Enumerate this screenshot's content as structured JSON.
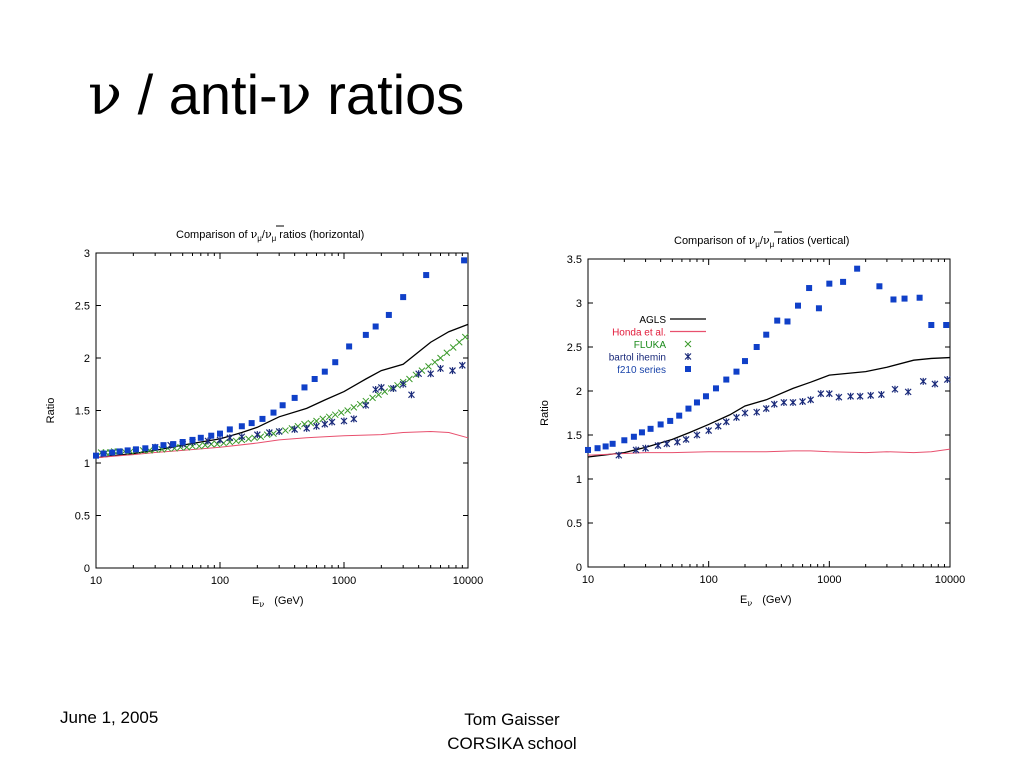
{
  "slide": {
    "title_nu1": "ν",
    "title_middle": " / anti-",
    "title_nu2": "ν",
    "title_end": " ratios",
    "footer_date": "June 1, 2005",
    "footer_author_line1": "Tom Gaisser",
    "footer_author_line2": "CORSIKA school"
  },
  "chart_data": [
    {
      "type": "line",
      "title_prefix": "Comparison of ",
      "title_nu_mu": "ν",
      "title_mu": "μ",
      "title_slash": "/",
      "title_suffix": " ratios (horizontal)",
      "ylabel": "Ratio",
      "xlabel_main": "E",
      "xlabel_sub": "ν",
      "xlabel_unit": "(GeV)",
      "xscale": "log",
      "xlim": [
        10,
        10000
      ],
      "ylim": [
        0,
        3
      ],
      "x_ticks": [
        10,
        100,
        1000,
        10000
      ],
      "x_tick_labels": [
        "10",
        "100",
        "1000",
        "10000"
      ],
      "y_ticks": [
        0,
        0.5,
        1,
        1.5,
        2,
        2.5,
        3
      ],
      "y_tick_labels": [
        "0",
        "0.5",
        "1",
        "1.5",
        "2",
        "2.5",
        "3"
      ],
      "series": [
        {
          "style": "line",
          "color": "#000000",
          "x": [
            10,
            20,
            30,
            50,
            70,
            100,
            150,
            200,
            300,
            500,
            700,
            1000,
            1500,
            2000,
            3000,
            5000,
            7000,
            10000
          ],
          "y": [
            1.05,
            1.09,
            1.12,
            1.17,
            1.2,
            1.23,
            1.29,
            1.34,
            1.44,
            1.52,
            1.6,
            1.68,
            1.8,
            1.88,
            1.94,
            2.15,
            2.25,
            2.32
          ]
        },
        {
          "style": "line",
          "color": "#e8506e",
          "x": [
            10,
            20,
            30,
            50,
            100,
            200,
            300,
            500,
            700,
            1000,
            2000,
            3000,
            5000,
            7000,
            10000
          ],
          "y": [
            1.05,
            1.08,
            1.1,
            1.12,
            1.15,
            1.19,
            1.22,
            1.24,
            1.25,
            1.26,
            1.27,
            1.29,
            1.3,
            1.29,
            1.24
          ]
        },
        {
          "style": "x",
          "color": "#3a9a2a",
          "x": [
            11,
            12,
            13,
            14,
            15,
            17,
            19,
            21,
            24,
            27,
            30,
            34,
            38,
            43,
            48,
            54,
            60,
            68,
            76,
            85,
            95,
            107,
            120,
            135,
            150,
            170,
            190,
            213,
            240,
            270,
            300,
            337,
            380,
            425,
            480,
            540,
            600,
            675,
            760,
            850,
            950,
            1070,
            1200,
            1350,
            1500,
            1700,
            1900,
            2130,
            2400,
            2700,
            3000,
            3370,
            3800,
            4250,
            4800,
            5400,
            6000,
            6750,
            7600,
            8500,
            9500
          ],
          "y": [
            1.1,
            1.1,
            1.1,
            1.11,
            1.11,
            1.11,
            1.11,
            1.12,
            1.12,
            1.12,
            1.13,
            1.13,
            1.14,
            1.14,
            1.15,
            1.15,
            1.16,
            1.16,
            1.17,
            1.18,
            1.18,
            1.19,
            1.2,
            1.21,
            1.22,
            1.23,
            1.24,
            1.25,
            1.27,
            1.28,
            1.3,
            1.31,
            1.33,
            1.35,
            1.37,
            1.38,
            1.4,
            1.42,
            1.44,
            1.46,
            1.48,
            1.5,
            1.53,
            1.56,
            1.59,
            1.62,
            1.65,
            1.68,
            1.71,
            1.74,
            1.77,
            1.8,
            1.84,
            1.88,
            1.92,
            1.96,
            2.0,
            2.05,
            2.1,
            2.15,
            2.2
          ]
        },
        {
          "style": "asterisk",
          "color": "#1a2a7a",
          "x": [
            30,
            40,
            50,
            60,
            80,
            100,
            120,
            150,
            200,
            250,
            300,
            400,
            500,
            600,
            700,
            800,
            1000,
            1200,
            1500,
            1800,
            2000,
            2500,
            3000,
            3500,
            4000,
            5000,
            6000,
            7500,
            9000
          ],
          "y": [
            1.15,
            1.17,
            1.18,
            1.2,
            1.21,
            1.22,
            1.24,
            1.25,
            1.27,
            1.29,
            1.3,
            1.32,
            1.33,
            1.35,
            1.37,
            1.39,
            1.4,
            1.42,
            1.55,
            1.7,
            1.72,
            1.71,
            1.75,
            1.65,
            1.85,
            1.85,
            1.9,
            1.88,
            1.93
          ]
        },
        {
          "style": "square",
          "color": "#1040c8",
          "x": [
            10,
            11.5,
            13.5,
            15.5,
            18,
            21,
            25,
            30,
            35,
            42,
            50,
            60,
            70,
            85,
            100,
            120,
            150,
            180,
            220,
            270,
            320,
            400,
            480,
            580,
            700,
            850,
            1100,
            1500,
            1800,
            2300,
            3000,
            4600,
            9300
          ],
          "y": [
            1.07,
            1.09,
            1.1,
            1.11,
            1.12,
            1.13,
            1.14,
            1.15,
            1.17,
            1.18,
            1.2,
            1.22,
            1.24,
            1.26,
            1.28,
            1.32,
            1.35,
            1.38,
            1.42,
            1.48,
            1.55,
            1.62,
            1.72,
            1.8,
            1.87,
            1.96,
            2.11,
            2.22,
            2.3,
            2.41,
            2.58,
            2.79,
            2.93
          ]
        }
      ]
    },
    {
      "type": "line",
      "title_prefix": "Comparison of ",
      "title_nu_mu": "ν",
      "title_mu": "μ",
      "title_slash": "/",
      "title_suffix": " ratios (vertical)",
      "ylabel": "Ratio",
      "xlabel_main": "E",
      "xlabel_sub": "ν",
      "xlabel_unit": "(GeV)",
      "xscale": "log",
      "xlim": [
        10,
        10000
      ],
      "ylim": [
        0,
        3.5
      ],
      "x_ticks": [
        10,
        100,
        1000,
        10000
      ],
      "x_tick_labels": [
        "10",
        "100",
        "1000",
        "10000"
      ],
      "y_ticks": [
        0,
        0.5,
        1,
        1.5,
        2,
        2.5,
        3,
        3.5
      ],
      "y_tick_labels": [
        "0",
        "0.5",
        "1",
        "1.5",
        "2",
        "2.5",
        "3",
        "3.5"
      ],
      "legend_position": "upper-left",
      "series": [
        {
          "name": "AGLS",
          "style": "line",
          "color": "#000000",
          "legend_color": "#000000",
          "x": [
            10,
            20,
            30,
            50,
            70,
            100,
            150,
            200,
            300,
            500,
            700,
            1000,
            2000,
            3000,
            5000,
            7000,
            10000
          ],
          "y": [
            1.25,
            1.3,
            1.36,
            1.45,
            1.53,
            1.62,
            1.73,
            1.83,
            1.9,
            2.03,
            2.1,
            2.18,
            2.22,
            2.27,
            2.35,
            2.37,
            2.38
          ]
        },
        {
          "name": "Honda et al.",
          "style": "line",
          "color": "#e8506e",
          "legend_color": "#e21a3a",
          "x": [
            10,
            20,
            30,
            50,
            100,
            200,
            300,
            500,
            700,
            1000,
            2000,
            3000,
            5000,
            7000,
            10000
          ],
          "y": [
            1.27,
            1.29,
            1.3,
            1.3,
            1.31,
            1.31,
            1.31,
            1.32,
            1.32,
            1.31,
            1.3,
            1.31,
            1.3,
            1.31,
            1.34
          ]
        },
        {
          "name": "FLUKA",
          "style": "x",
          "color": "#3a9a2a",
          "legend_color": "#1a8a1a",
          "x": [],
          "y": []
        },
        {
          "name": "bartol ihemin",
          "style": "asterisk",
          "color": "#1a2a7a",
          "legend_color": "#1a2a7a",
          "x": [
            18,
            25,
            30,
            38,
            45,
            55,
            65,
            80,
            100,
            120,
            140,
            170,
            200,
            250,
            300,
            350,
            420,
            500,
            600,
            700,
            850,
            1000,
            1200,
            1500,
            1800,
            2200,
            2700,
            3500,
            4500,
            6000,
            7500,
            9500
          ],
          "y": [
            1.27,
            1.33,
            1.35,
            1.38,
            1.4,
            1.42,
            1.45,
            1.5,
            1.55,
            1.6,
            1.65,
            1.7,
            1.75,
            1.76,
            1.8,
            1.85,
            1.87,
            1.87,
            1.88,
            1.9,
            1.97,
            1.97,
            1.93,
            1.94,
            1.94,
            1.95,
            1.96,
            2.02,
            1.99,
            2.11,
            2.08,
            2.13
          ]
        },
        {
          "name": "f210 series",
          "style": "square",
          "color": "#1040c8",
          "legend_color": "#1a44aa",
          "x": [
            10,
            12,
            14,
            16,
            20,
            24,
            28,
            33,
            40,
            48,
            57,
            68,
            80,
            95,
            115,
            140,
            170,
            200,
            250,
            300,
            370,
            450,
            550,
            680,
            820,
            1000,
            1300,
            1700,
            2600,
            3400,
            4200,
            5600,
            7000,
            9300
          ],
          "y": [
            1.33,
            1.35,
            1.37,
            1.4,
            1.44,
            1.48,
            1.53,
            1.57,
            1.62,
            1.66,
            1.72,
            1.8,
            1.87,
            1.94,
            2.03,
            2.13,
            2.22,
            2.34,
            2.5,
            2.64,
            2.8,
            2.79,
            2.97,
            3.17,
            2.94,
            3.22,
            3.24,
            3.39,
            3.19,
            3.04,
            3.05,
            3.06,
            2.75,
            2.75
          ]
        }
      ]
    }
  ]
}
